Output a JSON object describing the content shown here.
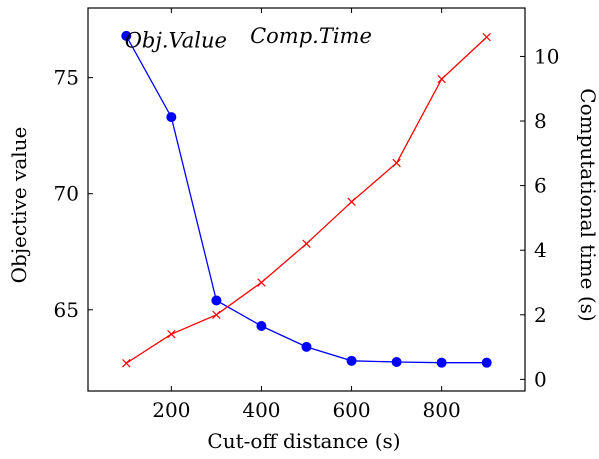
{
  "chart_data": {
    "type": "line",
    "xlabel": "Cut-off distance (s)",
    "ylabel_left": "Objective value",
    "ylabel_right": "Computational time (s)",
    "x_ticks": [
      200,
      400,
      600,
      800
    ],
    "y_left_ticks": [
      65,
      70,
      75
    ],
    "y_right_ticks": [
      0,
      2,
      4,
      6,
      8,
      10
    ],
    "xlim": [
      15,
      985
    ],
    "ylim_left": [
      61.5,
      78.0
    ],
    "ylim_right": [
      -0.36,
      11.5
    ],
    "annotations": [
      {
        "text": "Obj.Value",
        "x": 210,
        "y": 76.3
      },
      {
        "text": "Comp.Time",
        "x": 510,
        "y": 76.5
      }
    ],
    "series": [
      {
        "name": "Obj.Value",
        "axis": "left",
        "color": "#0000ff",
        "marker": "circle",
        "x": [
          100,
          200,
          300,
          400,
          500,
          600,
          700,
          800,
          900
        ],
        "values": [
          76.8,
          73.3,
          65.4,
          64.3,
          63.4,
          62.8,
          62.75,
          62.72,
          62.72
        ]
      },
      {
        "name": "Comp.Time",
        "axis": "right",
        "color": "#ff0000",
        "marker": "x",
        "x": [
          100,
          200,
          300,
          400,
          500,
          600,
          700,
          800,
          900
        ],
        "values": [
          0.5,
          1.4,
          2.0,
          3.0,
          4.2,
          5.5,
          6.7,
          9.3,
          10.6
        ]
      }
    ]
  }
}
